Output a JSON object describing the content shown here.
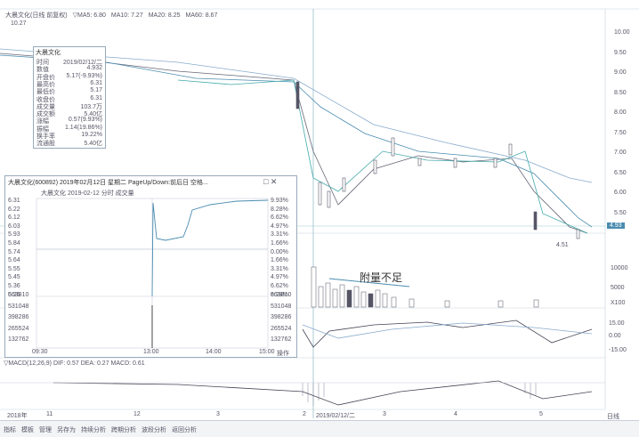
{
  "main": {
    "header": [
      "大晨文化(日线 前复权)",
      "▽MA5: 6.80",
      "MA10: 7.27",
      "MA20: 8.25",
      "MA60: 8.67"
    ],
    "high_marker": "10.27",
    "low_marker": "4.51",
    "price_axis": [
      "10.00",
      "9.50",
      "9.00",
      "8.50",
      "8.00",
      "7.50",
      "7.00",
      "6.50",
      "6.00",
      "5.50"
    ],
    "current_price": "4.93",
    "volume_axis": [
      "10000",
      "5000",
      "X100"
    ],
    "volume_note": "附量不足",
    "indicator_axis": [
      "15.00",
      "0.00",
      "-15.00"
    ],
    "macd_header": "▽MACD(12,26,9) DIF: 0.57 DEA: 0.27 MACD: 0.61",
    "date_axis": [
      "2018年",
      "11",
      "12",
      "3",
      "2",
      "2019/02/12/二",
      "3",
      "4",
      "5"
    ],
    "tabs": [
      "指标",
      "模板",
      "管理",
      "另存为",
      "持续分析",
      "跨期分析",
      "波段分析",
      "返回分析"
    ],
    "period": "日线"
  },
  "info_box": {
    "title": "大晨文化",
    "rows": [
      [
        "时间",
        "2019/02/12/二"
      ],
      [
        "数值",
        "4.932"
      ],
      [
        "开盘价",
        "5.17(-9.93%)"
      ],
      [
        "最高价",
        "6.31"
      ],
      [
        "最低价",
        "5.17"
      ],
      [
        "收盘价",
        "6.31"
      ],
      [
        "成交量",
        "103.7万"
      ],
      [
        "成交额",
        "5.40亿"
      ],
      [
        "涨幅",
        "0.57(9.93%)"
      ],
      [
        "振幅",
        "1.14(19.86%)"
      ],
      [
        "换手率",
        "19.22%"
      ],
      [
        "流通股",
        "5.40亿"
      ]
    ]
  },
  "intraday": {
    "title": "大晨文化(600892) 2019年02月12日 星期二 PageUp/Down:前后日 空格...",
    "subtitle": "大晨文化 2019-02-12 分时 成交量",
    "price_axis": [
      "6.31",
      "6.22",
      "6.12",
      "6.03",
      "5.93",
      "5.84",
      "5.74",
      "5.64",
      "5.55",
      "5.45",
      "5.36",
      "5.26"
    ],
    "pct_axis": [
      "9.93%",
      "8.28%",
      "6.62%",
      "4.97%",
      "3.31%",
      "1.66%",
      "0.00%",
      "1.66%",
      "3.31%",
      "4.97%",
      "6.62%",
      "8.28%"
    ],
    "volume_axis": [
      "663810",
      "531048",
      "398286",
      "265524",
      "132762"
    ],
    "time_axis": [
      "09:30",
      "13:00",
      "14:00",
      "15:00"
    ],
    "action": "操作"
  }
}
